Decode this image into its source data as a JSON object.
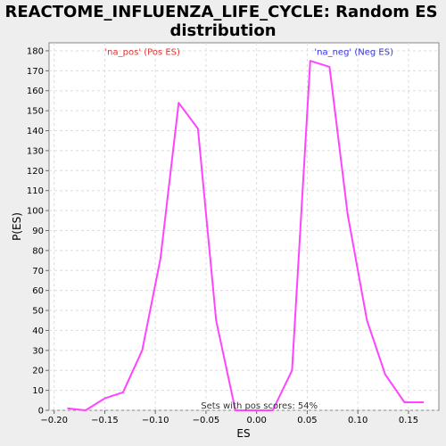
{
  "chart_data": {
    "type": "line",
    "title_lines": [
      "REACTOME_INFLUENZA_LIFE_CYCLE: Random ES",
      "distribution"
    ],
    "xlabel": "ES",
    "ylabel": "P(ES)",
    "xlim": [
      -0.205,
      0.18
    ],
    "ylim": [
      0,
      184
    ],
    "x_ticks": [
      -0.2,
      -0.15,
      -0.1,
      -0.05,
      0.0,
      0.05,
      0.1,
      0.15
    ],
    "x_tick_labels": [
      "−0.20",
      "−0.15",
      "−0.10",
      "−0.05",
      "0.00",
      "0.05",
      "0.10",
      "0.15"
    ],
    "y_ticks": [
      0,
      10,
      20,
      30,
      40,
      50,
      60,
      70,
      80,
      90,
      100,
      110,
      120,
      130,
      140,
      150,
      160,
      170,
      180
    ],
    "grid": true,
    "line_color": "#ff44ff",
    "series": [
      {
        "x": [
          -0.187,
          -0.169,
          -0.15,
          -0.132,
          -0.113,
          -0.095,
          -0.077,
          -0.058,
          -0.04,
          -0.021,
          -0.003,
          0.016,
          0.035,
          0.053,
          0.072,
          0.09,
          0.109,
          0.127,
          0.146,
          0.165
        ],
        "y": [
          1,
          0,
          6,
          9,
          30,
          76,
          154,
          141,
          45,
          0,
          0,
          0,
          20,
          175,
          172,
          98,
          45,
          18,
          4,
          4
        ]
      }
    ],
    "annotations": [
      {
        "text": "'na_pos' (Pos ES)",
        "x": -0.15,
        "y": 178,
        "color": "#dd3333"
      },
      {
        "text": "'na_neg' (Neg ES)",
        "x": 0.057,
        "y": 178,
        "color": "#3333dd"
      },
      {
        "text": "Sets with pos scores: 54%",
        "x": -0.055,
        "y": 1,
        "color": "#333333"
      }
    ]
  }
}
